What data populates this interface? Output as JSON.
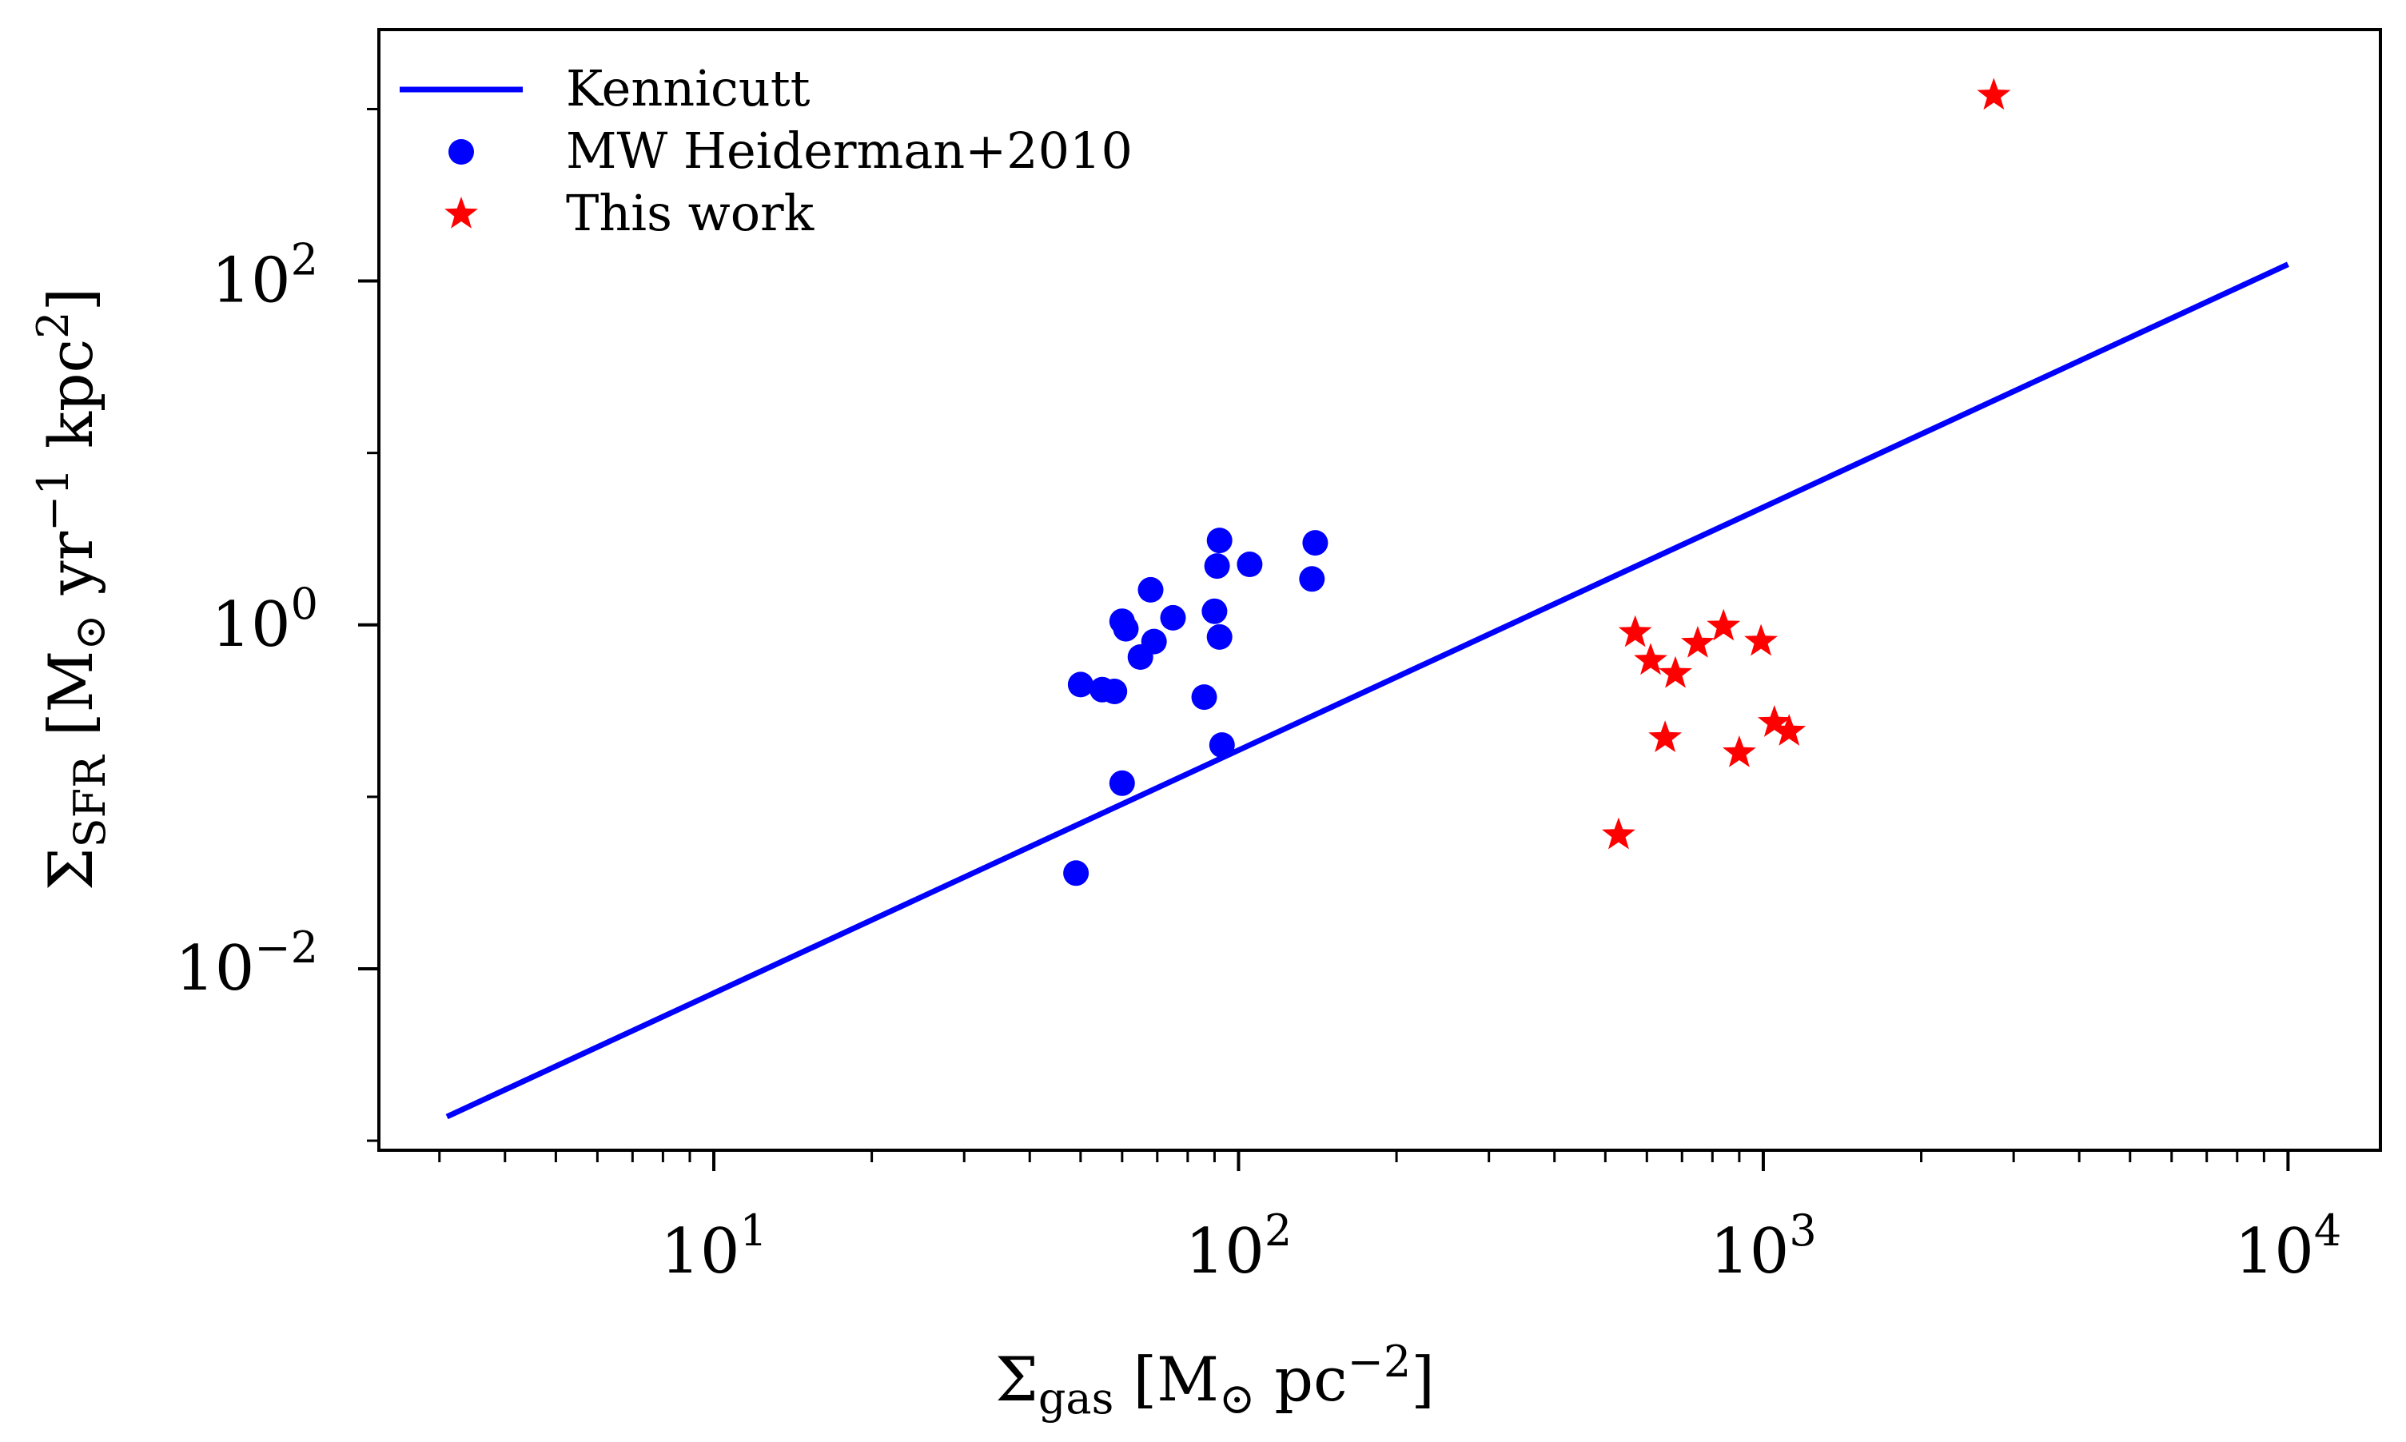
{
  "chart_data": {
    "type": "scatter",
    "xscale": "log",
    "yscale": "log",
    "xlim": [
      2.3,
      15000
    ],
    "ylim": [
      0.00088,
      2900
    ],
    "xlabel": "Σgas [M⊙ pc⁻²]",
    "ylabel": "ΣSFR [M⊙ yr⁻¹ kpc²]",
    "x_ticks": [
      {
        "value": 10,
        "base": "10",
        "exp": "1"
      },
      {
        "value": 100,
        "base": "10",
        "exp": "2"
      },
      {
        "value": 1000,
        "base": "10",
        "exp": "3"
      },
      {
        "value": 10000,
        "base": "10",
        "exp": "4"
      }
    ],
    "y_ticks": [
      {
        "value": 0.01,
        "base": "10",
        "exp": "−2"
      },
      {
        "value": 1,
        "base": "10",
        "exp": "0"
      },
      {
        "value": 100,
        "base": "10",
        "exp": "2"
      }
    ],
    "legend": {
      "position": "upper-left"
    },
    "series": [
      {
        "name": "Kennicutt",
        "kind": "line",
        "color": "#0000ff",
        "points": [
          [
            3.1,
            0.00138
          ],
          [
            10000,
            125
          ]
        ]
      },
      {
        "name": "MW Heiderman+2010",
        "kind": "scatter",
        "marker": "circle",
        "color": "#0000ff",
        "points": [
          [
            92,
            3.1
          ],
          [
            140,
            3.0
          ],
          [
            91,
            2.2
          ],
          [
            105,
            2.25
          ],
          [
            138,
            1.85
          ],
          [
            68,
            1.6
          ],
          [
            75,
            1.1
          ],
          [
            90,
            1.2
          ],
          [
            60,
            1.05
          ],
          [
            61,
            0.95
          ],
          [
            92,
            0.85
          ],
          [
            69,
            0.8
          ],
          [
            65,
            0.65
          ],
          [
            50,
            0.45
          ],
          [
            55,
            0.42
          ],
          [
            58,
            0.41
          ],
          [
            86,
            0.38
          ],
          [
            93,
            0.2
          ],
          [
            60,
            0.12
          ],
          [
            49,
            0.036
          ]
        ]
      },
      {
        "name": "This work",
        "kind": "scatter",
        "marker": "star",
        "color": "#ff0000",
        "points": [
          [
            2750,
            1200
          ],
          [
            840,
            0.98
          ],
          [
            570,
            0.9
          ],
          [
            990,
            0.8
          ],
          [
            750,
            0.78
          ],
          [
            610,
            0.62
          ],
          [
            680,
            0.52
          ],
          [
            1050,
            0.27
          ],
          [
            1120,
            0.24
          ],
          [
            650,
            0.22
          ],
          [
            900,
            0.18
          ],
          [
            530,
            0.06
          ]
        ]
      }
    ]
  }
}
